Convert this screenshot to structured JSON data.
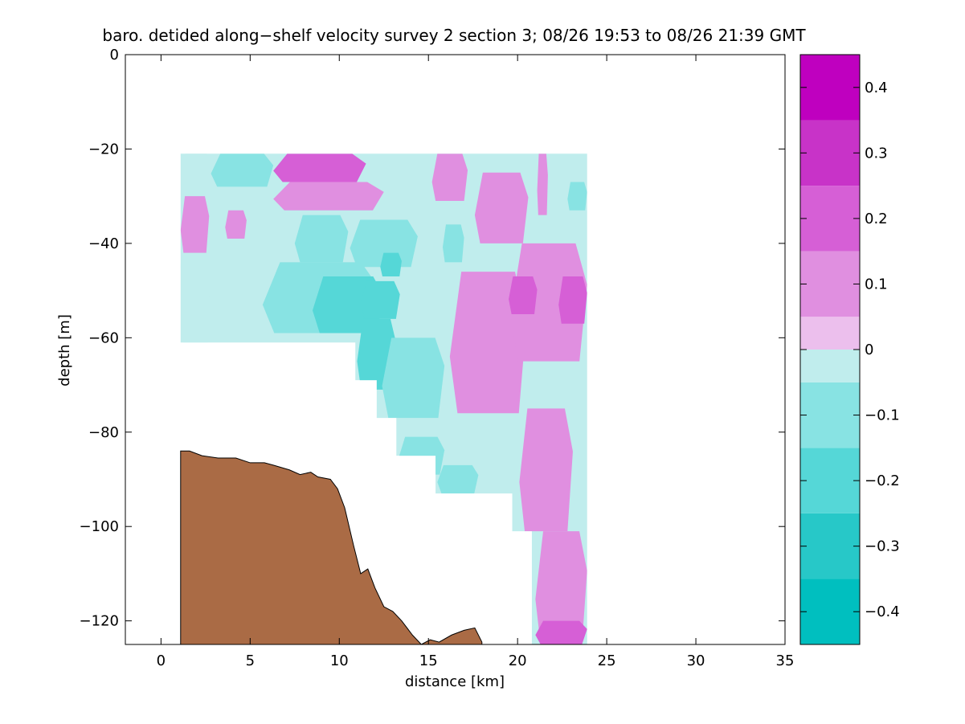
{
  "chart_data": {
    "type": "heatmap",
    "title": "baro. detided along−shelf velocity survey 2 section 3; 08/26 19:53 to 08/26 21:39 GMT",
    "xlabel": "distance [km]",
    "ylabel": "depth [m]",
    "xlim": [
      -2,
      35
    ],
    "ylim": [
      -125,
      0
    ],
    "x_ticks": [
      0,
      5,
      10,
      15,
      20,
      25,
      30,
      35
    ],
    "x_tick_labels": [
      "0",
      "5",
      "10",
      "15",
      "20",
      "25",
      "30",
      "35"
    ],
    "y_ticks": [
      0,
      -20,
      -40,
      -60,
      -80,
      -100,
      -120
    ],
    "y_tick_labels": [
      "0",
      "−20",
      "−40",
      "−60",
      "−80",
      "−100",
      "−120"
    ],
    "grid": false,
    "colorbar": {
      "levels": [
        -0.45,
        -0.4,
        -0.3,
        -0.2,
        -0.1,
        0,
        0.1,
        0.2,
        0.3,
        0.4,
        0.45
      ],
      "band_edges": [
        -0.45,
        -0.4,
        -0.35,
        -0.3,
        -0.25,
        -0.2,
        -0.15,
        -0.1,
        -0.05,
        0,
        0.05,
        0.1,
        0.15,
        0.2,
        0.25,
        0.3,
        0.35,
        0.4,
        0.45
      ],
      "tick_values": [
        0.4,
        0.3,
        0.2,
        0.1,
        0,
        -0.1,
        -0.2,
        -0.3,
        -0.4
      ],
      "tick_labels": [
        "0.4",
        "0.3",
        "0.2",
        "0.1",
        "0",
        "−0.1",
        "−0.2",
        "−0.3",
        "−0.4"
      ],
      "colors": [
        "#00bfbf",
        "#27c8c8",
        "#55d7d7",
        "#88e3e3",
        "#c0eded",
        "#ecbfed",
        "#e08fe0",
        "#d65fd6",
        "#c833c8",
        "#bf00bf"
      ]
    },
    "bathymetry": {
      "x": [
        1.1,
        1.6,
        2.3,
        3.2,
        4.2,
        5.0,
        5.8,
        6.3,
        7.2,
        7.8,
        8.4,
        8.8,
        9.5,
        9.9,
        10.3,
        10.8,
        11.2,
        11.6,
        12.0,
        12.5,
        13.0,
        13.5,
        14.1,
        14.6,
        15.1,
        15.6,
        16.3,
        17.0,
        17.6,
        18.0
      ],
      "y": [
        -84,
        -84,
        -85,
        -85.5,
        -85.5,
        -86.5,
        -86.5,
        -87,
        -88,
        -89,
        -88.5,
        -89.5,
        -90,
        -92,
        -96,
        -104,
        -110,
        -109,
        -113,
        -117,
        -118,
        -120,
        -123,
        -125,
        -124,
        -124.5,
        -123,
        -122,
        -121.5,
        -124.5
      ],
      "color": "#aa6b45"
    },
    "data_region": {
      "top_depth": -21,
      "right_x": 23.9,
      "left_x": 1.1,
      "lower_boundary": {
        "x": [
          1.1,
          10.9,
          10.9,
          12.1,
          12.1,
          13.2,
          13.2,
          15.4,
          15.4,
          19.7,
          19.7,
          20.8,
          20.8
        ],
        "y": [
          -61,
          -61,
          -69,
          -69,
          -77,
          -77,
          -85,
          -85,
          -93,
          -93,
          -101,
          -101,
          -125
        ]
      }
    },
    "field_cells": [
      {
        "x": 1.1,
        "y": -21,
        "w": 1.7,
        "h": 40,
        "v": -0.05
      },
      {
        "x": 2.8,
        "y": -21,
        "w": 3.5,
        "h": 7,
        "v": -0.15
      },
      {
        "x": 6.3,
        "y": -21,
        "w": 5.2,
        "h": 6,
        "v": 0.15
      },
      {
        "x": 6.3,
        "y": -27,
        "w": 6.2,
        "h": 6,
        "v": 0.05
      },
      {
        "x": 1.1,
        "y": -30,
        "w": 1.6,
        "h": 12,
        "v": 0.05
      },
      {
        "x": 3.6,
        "y": -33,
        "w": 1.2,
        "h": 6,
        "v": 0.05
      },
      {
        "x": 7.5,
        "y": -34,
        "w": 3.0,
        "h": 10,
        "v": -0.15
      },
      {
        "x": 5.7,
        "y": -44,
        "w": 6.5,
        "h": 15,
        "v": -0.15
      },
      {
        "x": 8.5,
        "y": -47,
        "w": 4.0,
        "h": 12,
        "v": -0.25
      },
      {
        "x": 11.2,
        "y": -48,
        "w": 2.2,
        "h": 8,
        "v": -0.25
      },
      {
        "x": 11.0,
        "y": -56,
        "w": 2.2,
        "h": 15,
        "v": -0.25
      },
      {
        "x": 10.6,
        "y": -35,
        "w": 3.8,
        "h": 10,
        "v": -0.15
      },
      {
        "x": 12.3,
        "y": -42,
        "w": 1.2,
        "h": 5,
        "v": -0.25
      },
      {
        "x": 12.4,
        "y": -60,
        "w": 3.5,
        "h": 17,
        "v": -0.15
      },
      {
        "x": 13.3,
        "y": -81,
        "w": 2.6,
        "h": 8,
        "v": -0.15
      },
      {
        "x": 15.5,
        "y": -87,
        "w": 2.3,
        "h": 6,
        "v": -0.15
      },
      {
        "x": 15.8,
        "y": -36,
        "w": 1.2,
        "h": 8,
        "v": -0.15
      },
      {
        "x": 15.2,
        "y": -21,
        "w": 2.0,
        "h": 10,
        "v": 0.05
      },
      {
        "x": 16.2,
        "y": -46,
        "w": 4.3,
        "h": 30,
        "v": 0.05
      },
      {
        "x": 17.6,
        "y": -25,
        "w": 3.0,
        "h": 15,
        "v": 0.05
      },
      {
        "x": 19.6,
        "y": -40,
        "w": 4.3,
        "h": 25,
        "v": 0.05
      },
      {
        "x": 19.5,
        "y": -47,
        "w": 1.6,
        "h": 8,
        "v": 0.15
      },
      {
        "x": 22.3,
        "y": -47,
        "w": 1.6,
        "h": 10,
        "v": 0.15
      },
      {
        "x": 21.1,
        "y": -21,
        "w": 0.6,
        "h": 13,
        "v": 0.05
      },
      {
        "x": 22.8,
        "y": -27,
        "w": 1.1,
        "h": 6,
        "v": -0.15
      },
      {
        "x": 20.1,
        "y": -75,
        "w": 3.0,
        "h": 26,
        "v": 0.05
      },
      {
        "x": 21.0,
        "y": -101,
        "w": 2.9,
        "h": 24,
        "v": 0.05
      },
      {
        "x": 21.0,
        "y": -120,
        "w": 2.9,
        "h": 5,
        "v": 0.15
      }
    ]
  }
}
